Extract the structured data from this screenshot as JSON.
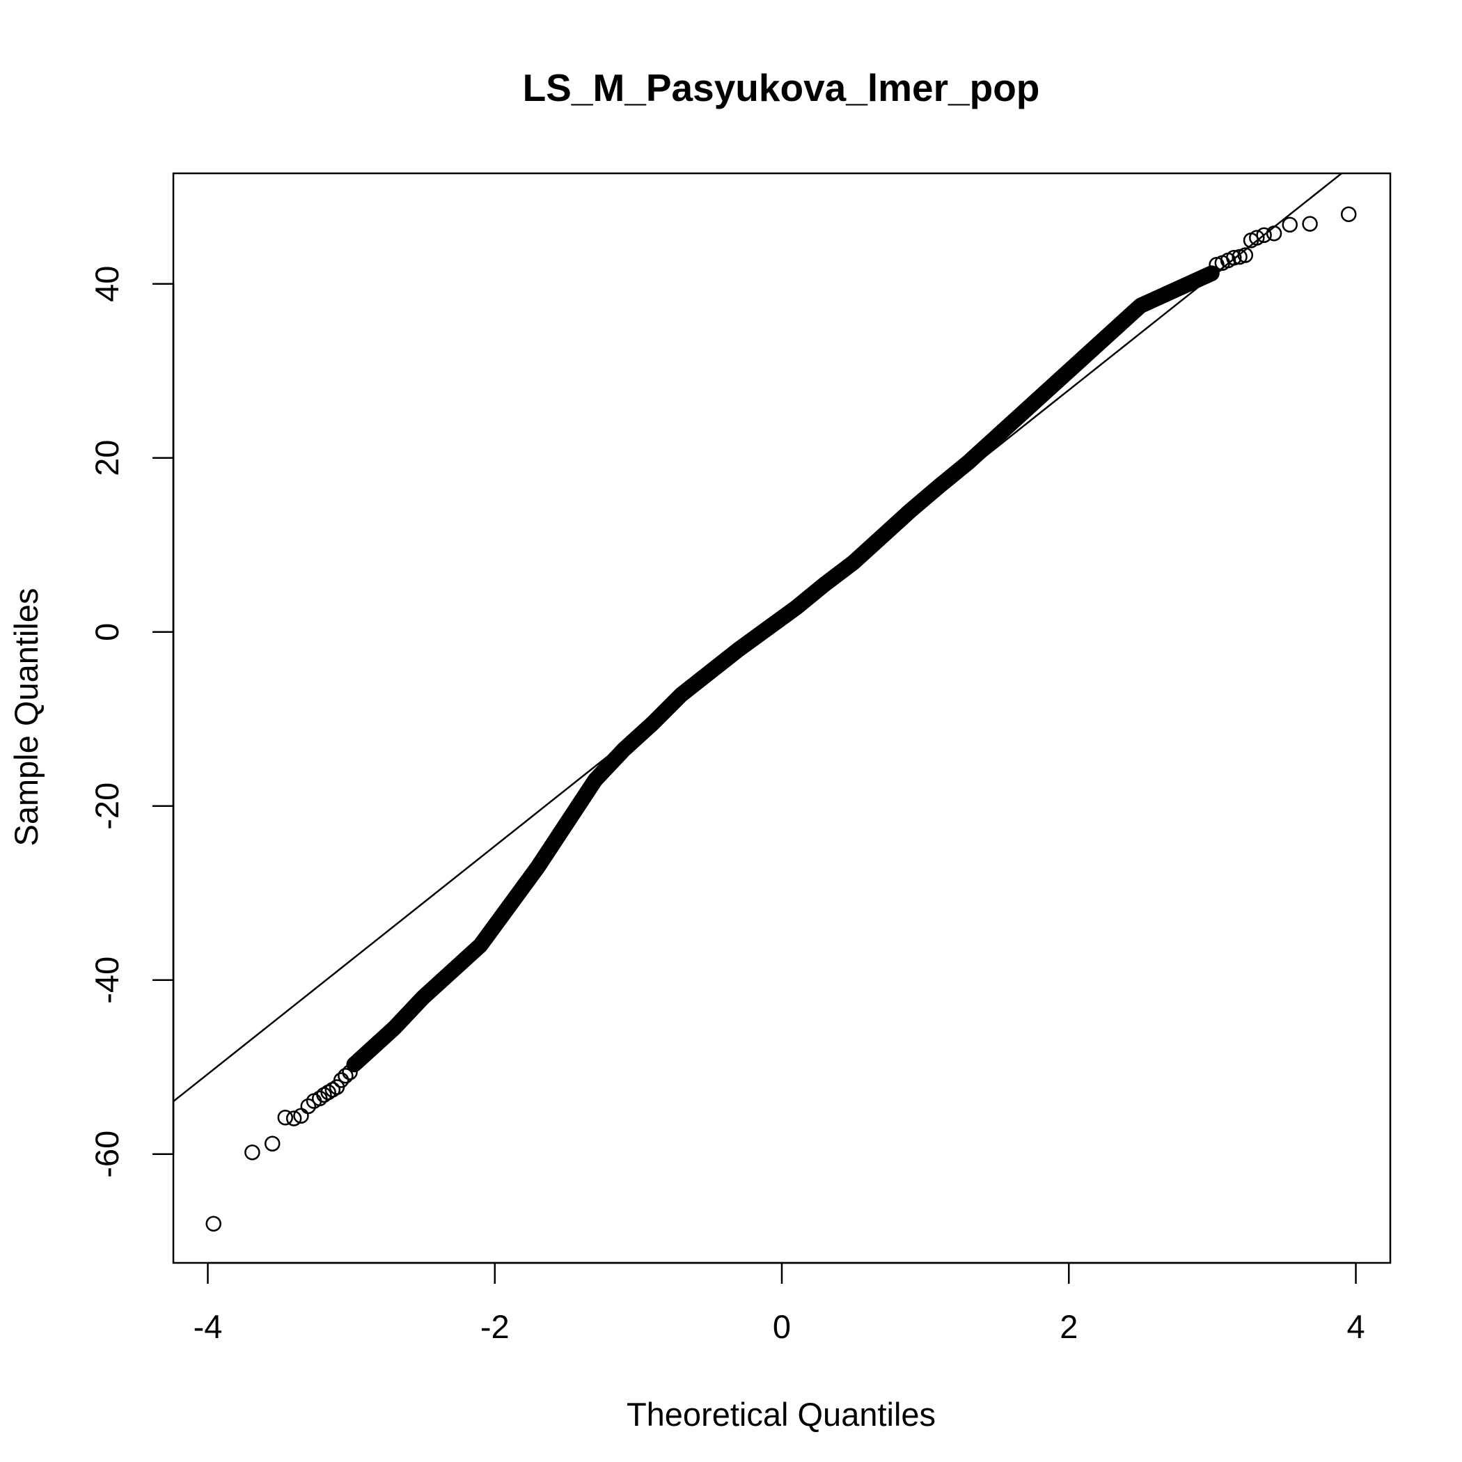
{
  "chart_data": {
    "type": "scatter",
    "title": "LS_M_Pasyukova_lmer_pop",
    "xlabel": "Theoretical Quantiles",
    "ylabel": "Sample Quantiles",
    "xlim": [
      -4.24,
      4.24
    ],
    "ylim": [
      -72.5,
      52.7
    ],
    "xticks": [
      -4,
      -2,
      0,
      2,
      4
    ],
    "yticks": [
      -60,
      -40,
      -20,
      0,
      20,
      40
    ],
    "grid": false,
    "qq_line": {
      "intercept": 1.6,
      "slope": 13.1
    },
    "profile_knots": {
      "x": [
        -3.96,
        -3.7,
        -3.5,
        -3.3,
        -3.1,
        -2.9,
        -2.7,
        -2.5,
        -2.3,
        -2.1,
        -1.9,
        -1.7,
        -1.5,
        -1.3,
        -1.1,
        -0.9,
        -0.7,
        -0.5,
        -0.3,
        -0.1,
        0.0,
        0.1,
        0.3,
        0.5,
        0.7,
        0.9,
        1.1,
        1.3,
        1.5,
        1.7,
        1.9,
        2.1,
        2.3,
        2.5,
        2.7,
        2.9,
        3.1,
        3.3,
        3.55,
        3.68,
        3.95
      ],
      "y": [
        -68.0,
        -59.8,
        -58.0,
        -55.0,
        -51.5,
        -48.5,
        -45.5,
        -42.0,
        -39.0,
        -36.0,
        -31.5,
        -27.0,
        -22.0,
        -17.0,
        -13.5,
        -10.5,
        -7.2,
        -4.6,
        -2.0,
        0.4,
        1.6,
        2.8,
        5.5,
        8.0,
        11.0,
        14.0,
        16.8,
        19.5,
        22.5,
        25.5,
        28.5,
        31.5,
        34.5,
        37.5,
        39.0,
        40.5,
        42.0,
        44.5,
        46.8,
        46.9,
        48.0
      ]
    },
    "outliers": [
      {
        "x": -3.96,
        "y": -68.0
      },
      {
        "x": -3.69,
        "y": -59.8
      },
      {
        "x": -3.55,
        "y": -58.8
      },
      {
        "x": -3.46,
        "y": -55.8
      },
      {
        "x": -3.4,
        "y": -55.9
      },
      {
        "x": -3.35,
        "y": -55.6
      },
      {
        "x": -3.3,
        "y": -54.5
      },
      {
        "x": -3.26,
        "y": -53.9
      },
      {
        "x": -3.22,
        "y": -53.6
      },
      {
        "x": -3.19,
        "y": -53.2
      },
      {
        "x": -3.16,
        "y": -52.9
      },
      {
        "x": -3.13,
        "y": -52.6
      },
      {
        "x": -3.1,
        "y": -52.3
      },
      {
        "x": -3.07,
        "y": -51.5
      },
      {
        "x": -3.04,
        "y": -51.0
      },
      {
        "x": -3.01,
        "y": -50.6
      },
      {
        "x": 3.03,
        "y": 42.2
      },
      {
        "x": 3.07,
        "y": 42.4
      },
      {
        "x": 3.11,
        "y": 42.7
      },
      {
        "x": 3.15,
        "y": 43.0
      },
      {
        "x": 3.19,
        "y": 43.1
      },
      {
        "x": 3.23,
        "y": 43.3
      },
      {
        "x": 3.27,
        "y": 45.0
      },
      {
        "x": 3.31,
        "y": 45.3
      },
      {
        "x": 3.36,
        "y": 45.6
      },
      {
        "x": 3.43,
        "y": 45.8
      },
      {
        "x": 3.54,
        "y": 46.8
      },
      {
        "x": 3.68,
        "y": 46.9
      },
      {
        "x": 3.95,
        "y": 48.0
      }
    ]
  }
}
